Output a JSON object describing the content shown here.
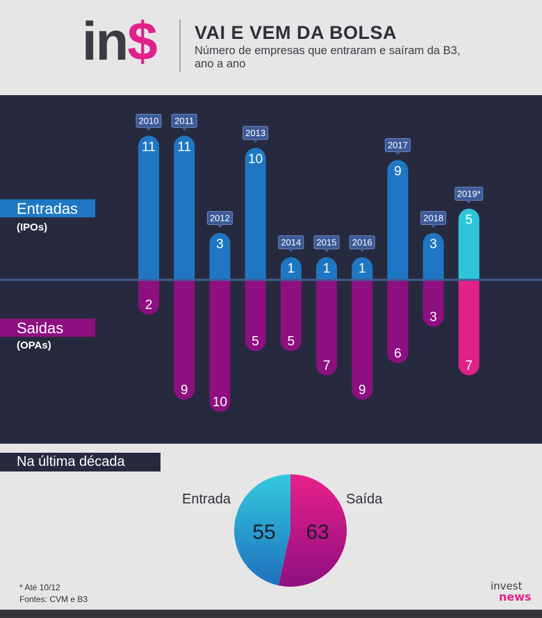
{
  "header": {
    "logo_a": "in",
    "logo_b": "$",
    "title": "VAI E VEM DA BOLSA",
    "subtitle": "Número de empresas que entraram e saíram da B3, ano a ano"
  },
  "labels": {
    "entradas": "Entradas",
    "entradas_sub": "(IPOs)",
    "saidas": "Saidas",
    "saidas_sub": "(OPAs)"
  },
  "colors": {
    "entradas": "#1f77c3",
    "saidas": "#8e0f80",
    "entradas_highlight": "#2ec5dc",
    "saidas_highlight": "#e0218a",
    "panel": "#272a3e",
    "year_tag": "#3c5a98"
  },
  "chart_data": {
    "type": "bar",
    "categories": [
      "2010",
      "2011",
      "2012",
      "2013",
      "2014",
      "2015",
      "2016",
      "2017",
      "2018",
      "2019*"
    ],
    "series": [
      {
        "name": "Entradas",
        "values": [
          11,
          11,
          3,
          10,
          1,
          1,
          1,
          9,
          3,
          5
        ]
      },
      {
        "name": "Saidas",
        "values": [
          2,
          9,
          10,
          5,
          5,
          7,
          9,
          6,
          3,
          7
        ]
      }
    ],
    "highlight_category": "2019*"
  },
  "pie": {
    "title": "Na última década",
    "chart_data": {
      "type": "pie",
      "labels": [
        "Entrada",
        "Saída"
      ],
      "values": [
        55,
        63
      ]
    }
  },
  "footer": {
    "note": "* Até 10/12",
    "sources": "Fontes: CVM e B3",
    "brand_a": "invest",
    "brand_b": "news"
  }
}
